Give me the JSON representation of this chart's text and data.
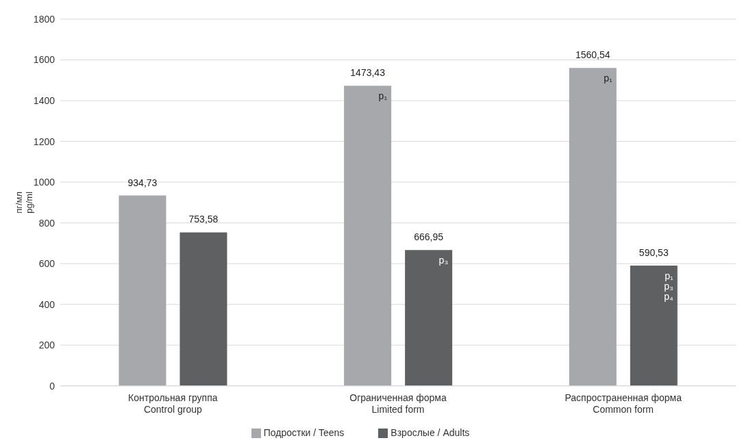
{
  "chart_data": {
    "type": "bar",
    "ylabel": "пг/мл\npg/ml",
    "categories": [
      "Контрольная группа\nControl group",
      "Ограниченная форма\nLimited form",
      "Распространенная форма\nCommon form"
    ],
    "series": [
      {
        "name": "Подростки / Teens",
        "color": "#a7a8ab",
        "values": [
          934.73,
          1473.43,
          1560.54
        ],
        "value_labels": [
          "934,73",
          "1473,43",
          "1560,54"
        ]
      },
      {
        "name": "Взрослые / Adults",
        "color": "#5f6062",
        "values": [
          753.58,
          666.95,
          590.53
        ],
        "value_labels": [
          "753,58",
          "666,95",
          "590,53"
        ]
      }
    ],
    "ylim": [
      0,
      1800
    ],
    "yticks": [
      0,
      200,
      400,
      600,
      800,
      1000,
      1200,
      1400,
      1600,
      1800
    ],
    "grid": "y",
    "legend": "bottom",
    "annotations": [
      "p₁",
      "p₃",
      "p₁",
      "p₁\np₃\np₄"
    ]
  }
}
